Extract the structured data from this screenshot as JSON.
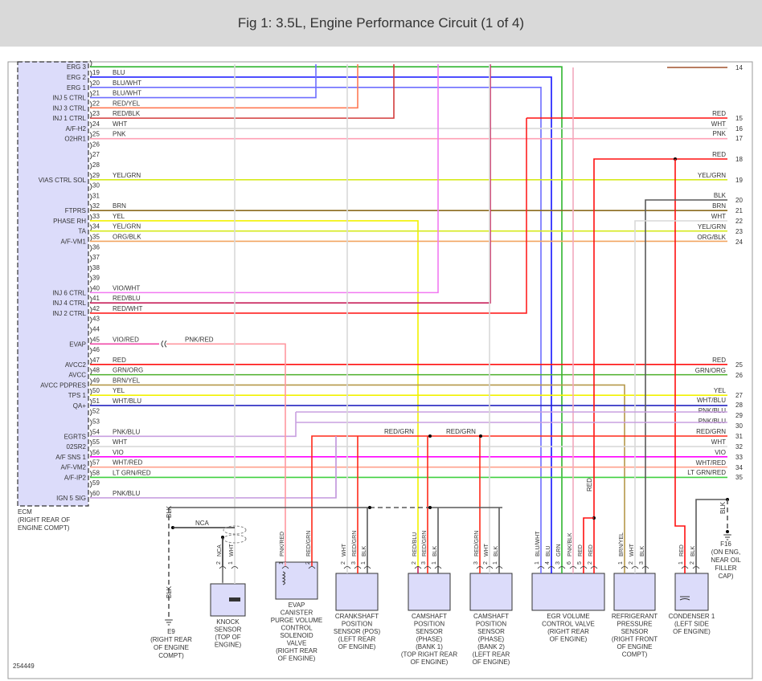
{
  "title": "Fig 1: 3.5L, Engine Performance Circuit (1 of 4)",
  "figure_number": "254449",
  "wire_colors": {
    "GRN": "#2fb52f",
    "BLU": "#1414ff",
    "BLU/WHT": "#6e6eff",
    "RED/YEL": "#ff7a55",
    "RED/BLK": "#d23c3c",
    "WHT": "#d9d9d9",
    "PNK": "#ffa0b4",
    "YEL/GRN": "#d6ea1e",
    "BRN": "#8b6a1e",
    "YEL": "#f2f200",
    "ORG/BLK": "#f2a560",
    "VIO/WHT": "#f27af2",
    "RED/BLU": "#c8205a",
    "RED/WHT": "#ff2020",
    "VIO/RED": "#f04aa8",
    "RED": "#ff1010",
    "GRN/ORG": "#4caf2a",
    "BRN/YEL": "#b5984a",
    "WHT/BLU": "#2424c0",
    "PNK/BLU": "#c8a0e0",
    "VIO": "#ff00ff",
    "WHT/RED": "#ffa08c",
    "LT GRN/RED": "#40d040",
    "BLK": "#5a5a5a",
    "PNK/RED": "#ff98a0",
    "RED/GRN": "#ff2a1a",
    "PNK/BLK": "#f2a8bc",
    "ECM_FILL": "#dcdcfa"
  },
  "ecm": {
    "label": [
      "ECM",
      "(RIGHT REAR OF",
      "ENGINE COMPT)"
    ],
    "pins": [
      {
        "num": "",
        "name": "ERG 3",
        "wire": "GRN",
        "row": 18
      },
      {
        "num": "19",
        "name": "ERG 2",
        "wire": "BLU"
      },
      {
        "num": "20",
        "name": "ERG 1",
        "wire": "BLU/WHT"
      },
      {
        "num": "21",
        "name": "INJ 5 CTRL",
        "wire": "BLU/WHT"
      },
      {
        "num": "22",
        "name": "INJ 3 CTRL",
        "wire": "RED/YEL"
      },
      {
        "num": "23",
        "name": "INJ 1 CTRL",
        "wire": "RED/BLK"
      },
      {
        "num": "24",
        "name": "A/F-H2",
        "wire": "WHT"
      },
      {
        "num": "25",
        "name": "O2HR1",
        "wire": "PNK"
      },
      {
        "num": "26",
        "name": "",
        "wire": ""
      },
      {
        "num": "27",
        "name": "",
        "wire": ""
      },
      {
        "num": "28",
        "name": "",
        "wire": ""
      },
      {
        "num": "29",
        "name": "VIAS CTRL SOL",
        "wire": "YEL/GRN"
      },
      {
        "num": "30",
        "name": "",
        "wire": ""
      },
      {
        "num": "31",
        "name": "",
        "wire": ""
      },
      {
        "num": "32",
        "name": "FTPRS",
        "wire": "BRN"
      },
      {
        "num": "33",
        "name": "PHASE RH",
        "wire": "YEL"
      },
      {
        "num": "34",
        "name": "TA",
        "wire": "YEL/GRN"
      },
      {
        "num": "35",
        "name": "A/F-VM1",
        "wire": "ORG/BLK"
      },
      {
        "num": "36",
        "name": "",
        "wire": ""
      },
      {
        "num": "37",
        "name": "",
        "wire": ""
      },
      {
        "num": "38",
        "name": "",
        "wire": ""
      },
      {
        "num": "39",
        "name": "",
        "wire": ""
      },
      {
        "num": "40",
        "name": "INJ 6 CTRL",
        "wire": "VIO/WHT"
      },
      {
        "num": "41",
        "name": "INJ 4 CTRL",
        "wire": "RED/BLU"
      },
      {
        "num": "42",
        "name": "INJ 2 CTRL",
        "wire": "RED/WHT"
      },
      {
        "num": "43",
        "name": "",
        "wire": ""
      },
      {
        "num": "44",
        "name": "",
        "wire": ""
      },
      {
        "num": "45",
        "name": "EVAP",
        "wire": "VIO/RED"
      },
      {
        "num": "46",
        "name": "",
        "wire": ""
      },
      {
        "num": "47",
        "name": "AVCC2",
        "wire": "RED"
      },
      {
        "num": "48",
        "name": "AVCC",
        "wire": "GRN/ORG"
      },
      {
        "num": "49",
        "name": "AVCC PDPRES",
        "wire": "BRN/YEL"
      },
      {
        "num": "50",
        "name": "TPS 1",
        "wire": "YEL"
      },
      {
        "num": "51",
        "name": "QA+",
        "wire": "WHT/BLU"
      },
      {
        "num": "52",
        "name": "",
        "wire": ""
      },
      {
        "num": "53",
        "name": "",
        "wire": ""
      },
      {
        "num": "54",
        "name": "EGRTS",
        "wire": "PNK/BLU"
      },
      {
        "num": "55",
        "name": "02SR2",
        "wire": "WHT"
      },
      {
        "num": "56",
        "name": "A/F SNS 1",
        "wire": "VIO"
      },
      {
        "num": "57",
        "name": "A/F-VM2",
        "wire": "WHT/RED"
      },
      {
        "num": "58",
        "name": "A/F-IP2",
        "wire": "LT GRN/RED"
      },
      {
        "num": "59",
        "name": "",
        "wire": ""
      },
      {
        "num": "60",
        "name": "IGN 5 SIG",
        "wire": "PNK/BLU"
      }
    ]
  },
  "right_terminals": [
    {
      "num": "14",
      "wire": ""
    },
    {
      "num": "15",
      "wire": "RED"
    },
    {
      "num": "16",
      "wire": "WHT"
    },
    {
      "num": "17",
      "wire": "PNK"
    },
    {
      "num": "18",
      "wire": "RED"
    },
    {
      "num": "19",
      "wire": "YEL/GRN"
    },
    {
      "num": "20",
      "wire": "BLK"
    },
    {
      "num": "21",
      "wire": "BRN"
    },
    {
      "num": "22",
      "wire": "WHT"
    },
    {
      "num": "23",
      "wire": "YEL/GRN"
    },
    {
      "num": "24",
      "wire": "ORG/BLK"
    },
    {
      "num": "25",
      "wire": "RED"
    },
    {
      "num": "26",
      "wire": "GRN/ORG"
    },
    {
      "num": "27",
      "wire": "YEL"
    },
    {
      "num": "28",
      "wire": "WHT/BLU"
    },
    {
      "num": "29",
      "wire": "PNK/BLU"
    },
    {
      "num": "30",
      "wire": "PNK/BLU"
    },
    {
      "num": "31",
      "wire": "RED/GRN"
    },
    {
      "num": "32",
      "wire": "WHT"
    },
    {
      "num": "33",
      "wire": "VIO"
    },
    {
      "num": "34",
      "wire": "WHT/RED"
    },
    {
      "num": "35",
      "wire": "LT GRN/RED"
    }
  ],
  "splice_labels": {
    "nca": "NCA",
    "evap_wire": "PNK/RED",
    "red_grn_1": "RED/GRN",
    "red_grn_2": "RED/GRN",
    "red_vert": "RED",
    "ground_wire": "BLK",
    "ground_wire_2": "BLK",
    "f16_wire": "BLK"
  },
  "components": [
    {
      "id": "knock-sensor",
      "name": [
        "KNOCK",
        "SENSOR",
        "(TOP OF",
        "ENGINE)"
      ],
      "pins": [
        {
          "num": "2",
          "wire": "NCA"
        },
        {
          "num": "1",
          "wire": "WHT"
        }
      ]
    },
    {
      "id": "evap-canister-purge-valve",
      "name": [
        "EVAP",
        "CANISTER",
        "PURGE VOLUME",
        "CONTROL",
        "SOLENOID",
        "VALVE",
        "(RIGHT REAR",
        "OF ENGINE)"
      ],
      "pins": [
        {
          "num": "1",
          "wire": "PNK/RED"
        },
        {
          "num": "2",
          "wire": "RED/GRN"
        }
      ]
    },
    {
      "id": "crankshaft-position-sensor",
      "name": [
        "CRANKSHAFT",
        "POSITION",
        "SENSOR (POS)",
        "(LEFT REAR",
        "OF ENGINE)"
      ],
      "pins": [
        {
          "num": "2",
          "wire": "WHT"
        },
        {
          "num": "3",
          "wire": "RED/GRN"
        },
        {
          "num": "1",
          "wire": "BLK"
        }
      ]
    },
    {
      "id": "camshaft-sensor-bank1",
      "name": [
        "CAMSHAFT",
        "POSITION",
        "SENSOR",
        "(PHASE)",
        "(BANK 1)",
        "(TOP RIGHT REAR",
        "OF ENGINE)"
      ],
      "pins": [
        {
          "num": "2",
          "wire": "RED/BLU"
        },
        {
          "num": "3",
          "wire": "RED/GRN"
        },
        {
          "num": "1",
          "wire": "BLK"
        }
      ]
    },
    {
      "id": "camshaft-sensor-bank2",
      "name": [
        "CAMSHAFT",
        "POSITION",
        "SENSOR",
        "(PHASE)",
        "(BANK 2)",
        "(LEFT REAR",
        "OF ENGINE)"
      ],
      "pins": [
        {
          "num": "3",
          "wire": "RED/GRN"
        },
        {
          "num": "2",
          "wire": "WHT"
        },
        {
          "num": "1",
          "wire": "BLK"
        }
      ]
    },
    {
      "id": "egr-volume-control-valve",
      "name": [
        "EGR VOLUME",
        "CONTROL VALVE",
        "(RIGHT REAR",
        "OF ENGINE)"
      ],
      "pins": [
        {
          "num": "1",
          "wire": "BLU/WHT"
        },
        {
          "num": "4",
          "wire": "BLU"
        },
        {
          "num": "3",
          "wire": "GRN"
        },
        {
          "num": "6",
          "wire": "PNK/BLK"
        },
        {
          "num": "5",
          "wire": "RED"
        },
        {
          "num": "2",
          "wire": "RED"
        }
      ]
    },
    {
      "id": "refrigerant-pressure-sensor",
      "name": [
        "REFRIGERANT",
        "PRESSURE",
        "SENSOR",
        "(RIGHT FRONT",
        "OF ENGINE",
        "COMPT)"
      ],
      "pins": [
        {
          "num": "1",
          "wire": "BRN/YEL"
        },
        {
          "num": "2",
          "wire": "WHT"
        },
        {
          "num": "3",
          "wire": "BLK"
        }
      ]
    },
    {
      "id": "condenser-1",
      "name": [
        "CONDENSER 1",
        "(LEFT SIDE",
        "OF ENGINE)"
      ],
      "pins": [
        {
          "num": "1",
          "wire": "RED"
        },
        {
          "num": "2",
          "wire": "BLK"
        }
      ]
    }
  ],
  "grounds": [
    {
      "id": "E9",
      "name": [
        "E9",
        "(RIGHT REAR",
        "OF ENGINE",
        "COMPT)"
      ]
    },
    {
      "id": "F16",
      "name": [
        "F16",
        "(ON ENG,",
        "NEAR OIL",
        "FILLER",
        "CAP)"
      ]
    }
  ]
}
